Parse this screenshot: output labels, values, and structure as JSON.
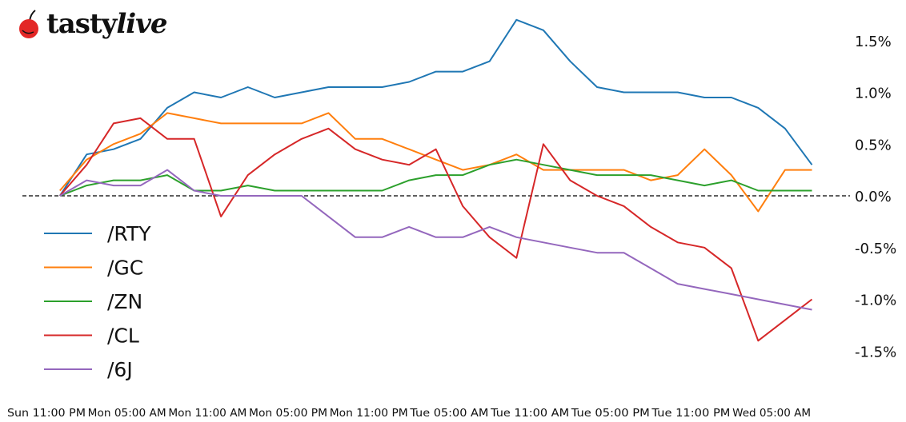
{
  "brand": {
    "name_plain": "tasty",
    "name_italic": "live",
    "logo_color": "#e32726"
  },
  "chart_data": {
    "type": "line",
    "title": "",
    "xlabel": "",
    "ylabel": "",
    "x_ticks": [
      "Sun 11:00 PM",
      "Mon 05:00 AM",
      "Mon 11:00 AM",
      "Mon 05:00 PM",
      "Mon 11:00 PM",
      "Tue 05:00 AM",
      "Tue 11:00 AM",
      "Tue 05:00 PM",
      "Tue 11:00 PM",
      "Wed 05:00 AM"
    ],
    "y_ticks": [
      1.5,
      1.0,
      0.5,
      0.0,
      -0.5,
      -1.0,
      -1.5
    ],
    "y_tick_labels": [
      "1.5%",
      "1.0%",
      "0.5%",
      "0.0%",
      "-0.5%",
      "-1.0%",
      "-1.5%"
    ],
    "y_axis_position": "right",
    "ylim": [
      -1.85,
      1.85
    ],
    "zero_line": "dashed black",
    "grid": false,
    "legend_position": "left",
    "x": [
      "Mon 00:00",
      "Mon 02:00",
      "Mon 04:00",
      "Mon 06:00",
      "Mon 08:00",
      "Mon 10:00",
      "Mon 12:00",
      "Mon 14:00",
      "Mon 16:00",
      "Mon 18:00",
      "Mon 20:00",
      "Mon 22:00",
      "Tue 00:00",
      "Tue 02:00",
      "Tue 04:00",
      "Tue 06:00",
      "Tue 08:00",
      "Tue 10:00",
      "Tue 12:00",
      "Tue 14:00",
      "Tue 16:00",
      "Tue 18:00",
      "Tue 20:00",
      "Tue 22:00",
      "Wed 00:00",
      "Wed 02:00",
      "Wed 04:00",
      "Wed 06:00",
      "Wed 08:00"
    ],
    "series": [
      {
        "name": "/RTY",
        "color": "#1f77b4",
        "values": [
          0.0,
          0.4,
          0.45,
          0.55,
          0.85,
          1.0,
          0.95,
          1.05,
          0.95,
          1.0,
          1.05,
          1.05,
          1.05,
          1.1,
          1.2,
          1.2,
          1.3,
          1.7,
          1.6,
          1.3,
          1.05,
          1.0,
          1.0,
          1.0,
          0.95,
          0.95,
          0.85,
          0.65,
          0.3
        ]
      },
      {
        "name": "/GC",
        "color": "#ff7f0e",
        "values": [
          0.05,
          0.35,
          0.5,
          0.6,
          0.8,
          0.75,
          0.7,
          0.7,
          0.7,
          0.7,
          0.8,
          0.55,
          0.55,
          0.45,
          0.35,
          0.25,
          0.3,
          0.4,
          0.25,
          0.25,
          0.25,
          0.25,
          0.15,
          0.2,
          0.45,
          0.2,
          -0.15,
          0.25,
          0.25
        ]
      },
      {
        "name": "/ZN",
        "color": "#2ca02c",
        "values": [
          0.0,
          0.1,
          0.15,
          0.15,
          0.2,
          0.05,
          0.05,
          0.1,
          0.05,
          0.05,
          0.05,
          0.05,
          0.05,
          0.15,
          0.2,
          0.2,
          0.3,
          0.35,
          0.3,
          0.25,
          0.2,
          0.2,
          0.2,
          0.15,
          0.1,
          0.15,
          0.05,
          0.05,
          0.05
        ]
      },
      {
        "name": "/CL",
        "color": "#d62728",
        "values": [
          0.0,
          0.3,
          0.7,
          0.75,
          0.55,
          0.55,
          -0.2,
          0.2,
          0.4,
          0.55,
          0.65,
          0.45,
          0.35,
          0.3,
          0.45,
          -0.1,
          -0.4,
          -0.6,
          0.5,
          0.15,
          0.0,
          -0.1,
          -0.3,
          -0.45,
          -0.5,
          -0.7,
          -1.4,
          -1.2,
          -1.0
        ]
      },
      {
        "name": "/6J",
        "color": "#9467bd",
        "values": [
          0.0,
          0.15,
          0.1,
          0.1,
          0.25,
          0.05,
          0.0,
          0.0,
          0.0,
          0.0,
          -0.2,
          -0.4,
          -0.4,
          -0.3,
          -0.4,
          -0.4,
          -0.3,
          -0.4,
          -0.45,
          -0.5,
          -0.55,
          -0.55,
          -0.7,
          -0.85,
          -0.9,
          -0.95,
          -1.0,
          -1.05,
          -1.1
        ]
      }
    ]
  }
}
